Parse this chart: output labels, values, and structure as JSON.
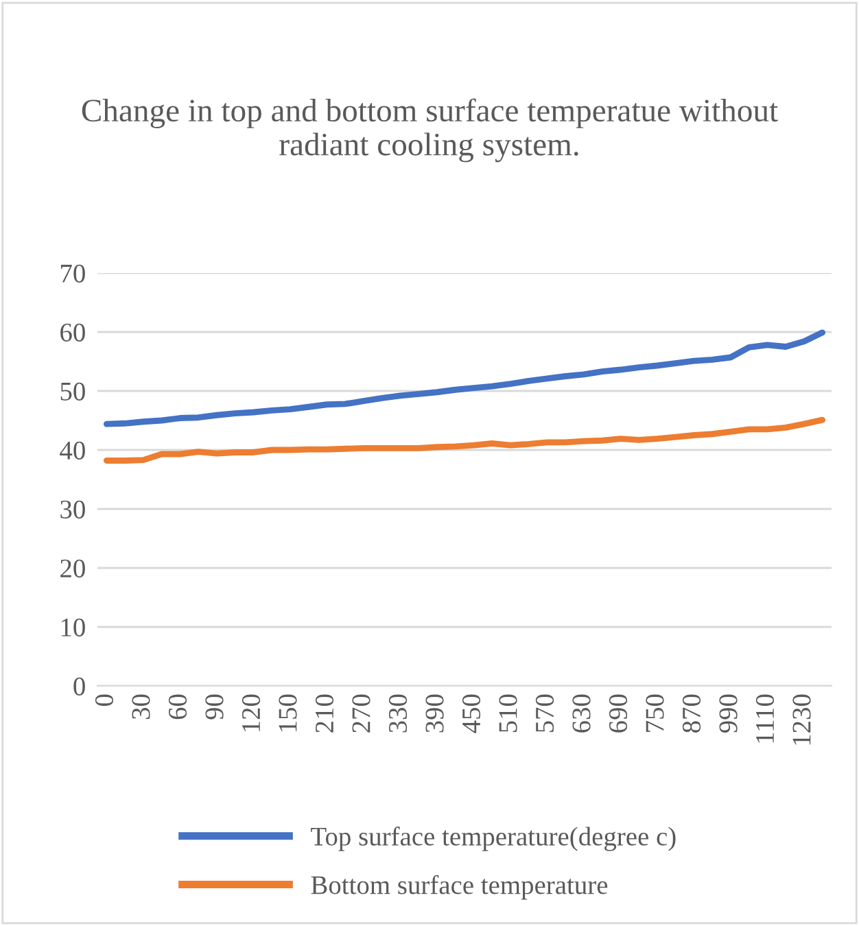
{
  "chart_data": {
    "type": "line",
    "title": "Change in top and bottom surface temperatue without radiant cooling system.",
    "categories": [
      "0",
      null,
      "30",
      null,
      "60",
      null,
      "90",
      null,
      "120",
      null,
      "150",
      null,
      "210",
      null,
      "270",
      null,
      "330",
      null,
      "390",
      null,
      "450",
      null,
      "510",
      null,
      "570",
      null,
      "630",
      null,
      "690",
      null,
      "750",
      null,
      "870",
      null,
      "990",
      null,
      "1110",
      null,
      "1230",
      null
    ],
    "series": [
      {
        "name": "Top surface temperature(degree c)",
        "color": "#4472c4",
        "values": [
          44.4,
          44.5,
          44.8,
          45.0,
          45.4,
          45.5,
          45.9,
          46.2,
          46.4,
          46.7,
          46.9,
          47.3,
          47.7,
          47.8,
          48.3,
          48.8,
          49.2,
          49.5,
          49.8,
          50.2,
          50.5,
          50.8,
          51.2,
          51.7,
          52.1,
          52.5,
          52.8,
          53.3,
          53.6,
          54.0,
          54.3,
          54.7,
          55.1,
          55.3,
          55.7,
          57.4,
          57.8,
          57.5,
          58.4,
          59.9
        ]
      },
      {
        "name": "Bottom surface temperature",
        "color": "#ed7d31",
        "values": [
          38.2,
          38.2,
          38.3,
          39.3,
          39.3,
          39.7,
          39.4,
          39.6,
          39.6,
          40.0,
          40.0,
          40.1,
          40.1,
          40.2,
          40.3,
          40.3,
          40.3,
          40.3,
          40.5,
          40.6,
          40.8,
          41.1,
          40.8,
          41.0,
          41.3,
          41.3,
          41.5,
          41.6,
          41.9,
          41.7,
          41.9,
          42.2,
          42.5,
          42.7,
          43.1,
          43.5,
          43.5,
          43.8,
          44.4,
          45.1
        ]
      }
    ],
    "ylim": [
      0,
      70
    ],
    "yticks": [
      0,
      10,
      20,
      30,
      40,
      50,
      60,
      70
    ],
    "grid": "y",
    "legend": "bottom",
    "marker": "none",
    "line_style": "solid"
  }
}
